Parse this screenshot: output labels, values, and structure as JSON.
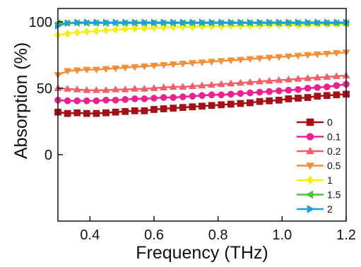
{
  "chart_data": {
    "type": "line",
    "title": "",
    "xlabel": "Frequency (THz)",
    "ylabel": "Absorption (%)",
    "xlim": [
      0.3,
      1.2
    ],
    "ylim": [
      -50,
      110
    ],
    "x_ticks": [
      0.4,
      0.6,
      0.8,
      1.0,
      1.2
    ],
    "x_tick_labels": [
      "0.4",
      "0.6",
      "0.8",
      "1.0",
      "1.2"
    ],
    "y_ticks": [
      0,
      50,
      100
    ],
    "y_tick_labels": [
      "0",
      "50",
      "100"
    ],
    "grid": false,
    "legend_position": "bottom-right",
    "x": [
      0.3,
      0.33,
      0.36,
      0.39,
      0.42,
      0.45,
      0.48,
      0.51,
      0.54,
      0.57,
      0.6,
      0.63,
      0.66,
      0.69,
      0.72,
      0.75,
      0.78,
      0.81,
      0.84,
      0.87,
      0.9,
      0.93,
      0.96,
      0.99,
      1.02,
      1.05,
      1.08,
      1.11,
      1.14,
      1.17,
      1.2
    ],
    "series": [
      {
        "name": "0",
        "color": "#a50f15",
        "marker": "square",
        "values": [
          32,
          31,
          31.5,
          31,
          31,
          31.5,
          32,
          32.5,
          33,
          33,
          34,
          34.5,
          35,
          35.5,
          36,
          36.5,
          37,
          37.5,
          38,
          38.5,
          39,
          40,
          40.5,
          41,
          42,
          42.5,
          43,
          44,
          44.5,
          45,
          45.5
        ]
      },
      {
        "name": "0.1",
        "color": "#f01f8f",
        "marker": "circle",
        "values": [
          41,
          40.5,
          40.5,
          40.5,
          40.5,
          41,
          41,
          41.5,
          42,
          42,
          42.5,
          43,
          43,
          43.5,
          44,
          44.5,
          45,
          45,
          45.5,
          46,
          46.5,
          47,
          47.5,
          48,
          48.5,
          49,
          50,
          50.5,
          51,
          52,
          53
        ]
      },
      {
        "name": "0.2",
        "color": "#f25f66",
        "marker": "triangle-up",
        "values": [
          50,
          49.5,
          49,
          48.5,
          48.5,
          48.5,
          49,
          49,
          49.5,
          49.5,
          50,
          50.5,
          51,
          51,
          51.5,
          52,
          52.5,
          53,
          53.5,
          54,
          54.5,
          55,
          55.5,
          56,
          56.5,
          57,
          57.5,
          58,
          58.5,
          59,
          59.5
        ]
      },
      {
        "name": "0.5",
        "color": "#f98d36",
        "marker": "triangle-down",
        "values": [
          60,
          63,
          63.5,
          64,
          64,
          64.5,
          65,
          65.5,
          66,
          66.5,
          67,
          67.5,
          68,
          68.5,
          69,
          69.5,
          70,
          70.5,
          71,
          71.5,
          72,
          72.5,
          73,
          73.5,
          74,
          74.5,
          75,
          75.5,
          76,
          76.5,
          77
        ]
      },
      {
        "name": "1",
        "color": "#f6ee1a",
        "marker": "diamond",
        "values": [
          90,
          91,
          92,
          92.5,
          93,
          93.5,
          94,
          94.5,
          95,
          95,
          95.5,
          95.5,
          96,
          96,
          96,
          96.5,
          96.5,
          96.5,
          97,
          97,
          97,
          97,
          97.5,
          97.5,
          97.5,
          97.5,
          98,
          98,
          98,
          98,
          98
        ]
      },
      {
        "name": "1.5",
        "color": "#4cc731",
        "marker": "triangle-left",
        "values": [
          99,
          99,
          99,
          99,
          99,
          99,
          99,
          99,
          99,
          99,
          99,
          99,
          99,
          99,
          99,
          99,
          99,
          99,
          99,
          99,
          99,
          99,
          99,
          99,
          99,
          99,
          99,
          99,
          99,
          99,
          99
        ]
      },
      {
        "name": "2",
        "color": "#1ea0d8",
        "marker": "triangle-right",
        "values": [
          97,
          99,
          99.5,
          99.5,
          99.5,
          99.5,
          99.5,
          99.5,
          99.5,
          99.5,
          99.5,
          99.5,
          99.5,
          99.5,
          99.5,
          99.5,
          99.5,
          99.5,
          99.5,
          99.5,
          99.5,
          99.5,
          99.5,
          99.5,
          99.5,
          99.5,
          99.5,
          99.5,
          99.5,
          99.5,
          99.5
        ]
      }
    ]
  }
}
